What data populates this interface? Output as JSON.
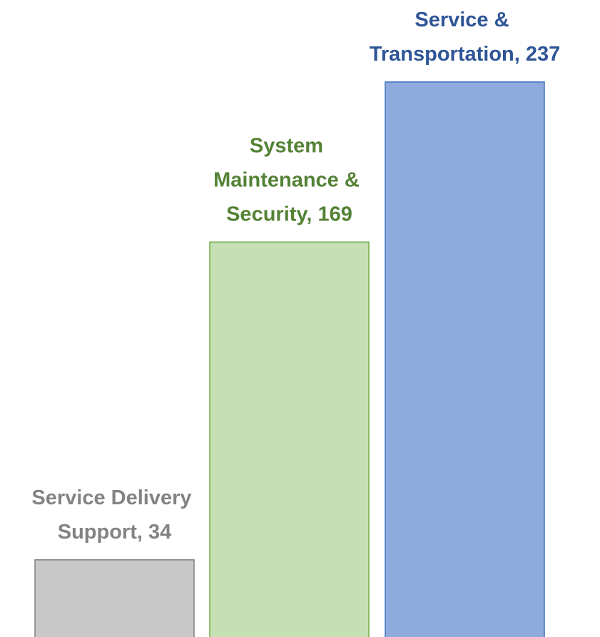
{
  "chart_data": {
    "type": "bar",
    "values": [
      34,
      169,
      237
    ],
    "value_labels": [
      "Service Delivery Support, 34",
      "System Maintenance & Security, 169",
      "Service & Transportation, 237"
    ],
    "colors": [
      "#c8c8c8",
      "#c5e0b4",
      "#8faadc"
    ],
    "edge_colors": [
      "#808080",
      "#70ad47",
      "#4472c4"
    ],
    "label_colors": [
      "#838383",
      "#548235",
      "#2f5597"
    ]
  }
}
